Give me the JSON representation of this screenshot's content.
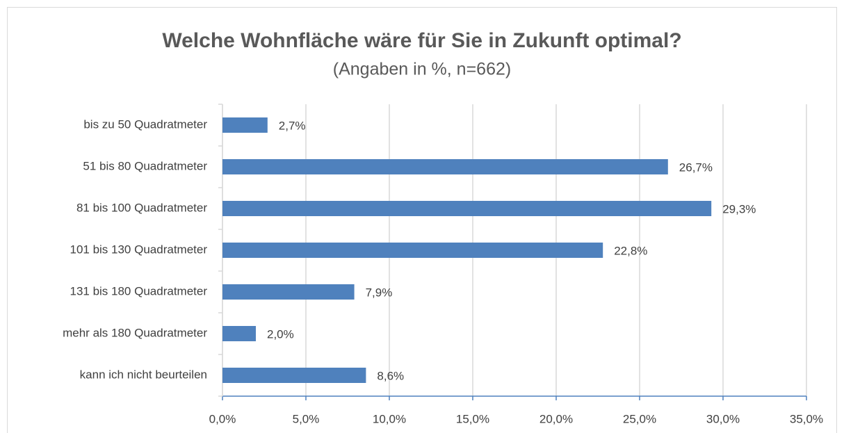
{
  "chart_data": {
    "type": "bar",
    "orientation": "horizontal",
    "title": "Welche Wohnfläche wäre für Sie in Zukunft optimal?",
    "subtitle": "(Angaben in %, n=662)",
    "categories": [
      "bis zu 50 Quadratmeter",
      "51 bis 80 Quadratmeter",
      "81 bis 100 Quadratmeter",
      "101 bis 130 Quadratmeter",
      "131 bis 180 Quadratmeter",
      "mehr als 180 Quadratmeter",
      "kann ich nicht beurteilen"
    ],
    "values": [
      2.7,
      26.7,
      29.3,
      22.8,
      7.9,
      2.0,
      8.6
    ],
    "value_labels": [
      "2,7%",
      "26,7%",
      "29,3%",
      "22,8%",
      "7,9%",
      "2,0%",
      "8,6%"
    ],
    "color": "#4f81bd",
    "xlim": [
      0,
      35
    ],
    "xticks": [
      {
        "value": 0,
        "label": "0,0%"
      },
      {
        "value": 5,
        "label": "5,0%"
      },
      {
        "value": 10,
        "label": "10,0%"
      },
      {
        "value": 15,
        "label": "15,0%"
      },
      {
        "value": 20,
        "label": "20,0%"
      },
      {
        "value": 25,
        "label": "25,0%"
      },
      {
        "value": 30,
        "label": "30,0%"
      },
      {
        "value": 35,
        "label": "35,0%"
      }
    ],
    "grid": true
  }
}
